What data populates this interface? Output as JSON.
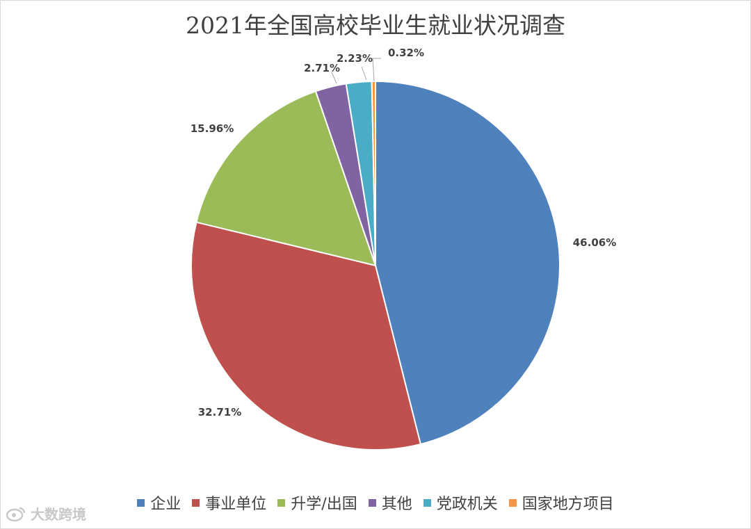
{
  "chart_data": {
    "type": "pie",
    "title": "2021年全国高校毕业生就业状况调查",
    "categories": [
      "企业",
      "事业单位",
      "升学/出国",
      "其他",
      "党政机关",
      "国家地方项目"
    ],
    "values": [
      46.06,
      32.71,
      15.96,
      2.71,
      2.23,
      0.32
    ],
    "data_labels": [
      "46.06%",
      "32.71%",
      "15.96%",
      "2.71%",
      "2.23%",
      "0.32%"
    ],
    "colors": [
      "#4f81bd",
      "#c0504d",
      "#9bbb59",
      "#8064a2",
      "#4bacc6",
      "#f79646"
    ],
    "start": "12 o'clock, clockwise",
    "legend": "bottom"
  },
  "watermark": {
    "icon": "weibo-logo-icon",
    "text": "大数跨境"
  }
}
